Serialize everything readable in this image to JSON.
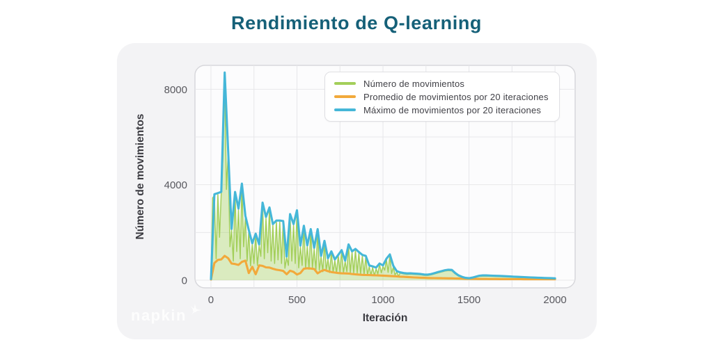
{
  "page": {
    "watermark": "napkin"
  },
  "colors": {
    "title": "#156078",
    "card_background": "#f3f3f5",
    "plot_background": "#fcfcfd",
    "plot_border": "#d7d7db",
    "gridline": "#e7e7ea",
    "tick_text": "#58585e",
    "axis_title_text": "#3b3b41",
    "series_green": "#a3cf5a",
    "series_green_fill": "rgba(163,207,90,0.38)",
    "series_orange": "#f2a93b",
    "series_blue": "#45b7d8"
  },
  "chart_data": {
    "type": "line",
    "title": "Rendimiento de Q-learning",
    "xlabel": "Iteración",
    "ylabel": "Número de movimientos",
    "xlim": [
      -93,
      2117
    ],
    "ylim": [
      -320,
      9000
    ],
    "x_ticks": [
      0,
      500,
      1000,
      1500,
      2000
    ],
    "y_ticks": [
      0,
      4000,
      8000
    ],
    "x_gridlines": [
      0,
      250,
      500,
      750,
      1000,
      1250,
      1500,
      1750,
      2000
    ],
    "y_gridlines": [
      0,
      2000,
      4000,
      6000,
      8000
    ],
    "grid": true,
    "legend_position": "top-right",
    "series": [
      {
        "name": "Número de movimientos",
        "type": "area",
        "color": "#a3cf5a",
        "fill": "rgba(163,207,90,0.38)",
        "points": [
          [
            0,
            20
          ],
          [
            10,
            3450
          ],
          [
            20,
            3550
          ],
          [
            30,
            900
          ],
          [
            40,
            3600
          ],
          [
            50,
            1800
          ],
          [
            60,
            3700
          ],
          [
            70,
            5200
          ],
          [
            80,
            8500
          ],
          [
            90,
            3800
          ],
          [
            100,
            5300
          ],
          [
            110,
            1400
          ],
          [
            120,
            2100
          ],
          [
            130,
            800
          ],
          [
            140,
            3650
          ],
          [
            150,
            1200
          ],
          [
            160,
            2950
          ],
          [
            170,
            900
          ],
          [
            180,
            4000
          ],
          [
            190,
            1400
          ],
          [
            200,
            2650
          ],
          [
            210,
            800
          ],
          [
            220,
            2050
          ],
          [
            230,
            600
          ],
          [
            240,
            1500
          ],
          [
            250,
            700
          ],
          [
            260,
            1900
          ],
          [
            270,
            620
          ],
          [
            280,
            1450
          ],
          [
            290,
            1000
          ],
          [
            300,
            3200
          ],
          [
            310,
            900
          ],
          [
            320,
            2600
          ],
          [
            330,
            1150
          ],
          [
            340,
            3000
          ],
          [
            350,
            800
          ],
          [
            360,
            2300
          ],
          [
            370,
            700
          ],
          [
            380,
            2450
          ],
          [
            390,
            850
          ],
          [
            400,
            2440
          ],
          [
            410,
            700
          ],
          [
            420,
            2430
          ],
          [
            430,
            500
          ],
          [
            440,
            950
          ],
          [
            450,
            620
          ],
          [
            460,
            2720
          ],
          [
            470,
            800
          ],
          [
            480,
            2300
          ],
          [
            490,
            700
          ],
          [
            500,
            2880
          ],
          [
            510,
            520
          ],
          [
            520,
            1400
          ],
          [
            530,
            620
          ],
          [
            540,
            2230
          ],
          [
            550,
            500
          ],
          [
            560,
            1420
          ],
          [
            570,
            460
          ],
          [
            580,
            2090
          ],
          [
            590,
            520
          ],
          [
            600,
            1310
          ],
          [
            610,
            420
          ],
          [
            620,
            2080
          ],
          [
            630,
            420
          ],
          [
            640,
            980
          ],
          [
            650,
            360
          ],
          [
            660,
            1600
          ],
          [
            670,
            420
          ],
          [
            680,
            880
          ],
          [
            690,
            320
          ],
          [
            700,
            1170
          ],
          [
            710,
            320
          ],
          [
            720,
            840
          ],
          [
            730,
            300
          ],
          [
            740,
            1030
          ],
          [
            750,
            320
          ],
          [
            760,
            1220
          ],
          [
            770,
            300
          ],
          [
            780,
            790
          ],
          [
            790,
            360
          ],
          [
            800,
            1460
          ],
          [
            810,
            320
          ],
          [
            820,
            1170
          ],
          [
            830,
            310
          ],
          [
            840,
            1270
          ],
          [
            850,
            300
          ],
          [
            860,
            1140
          ],
          [
            870,
            270
          ],
          [
            880,
            1020
          ],
          [
            890,
            250
          ],
          [
            900,
            980
          ],
          [
            910,
            230
          ],
          [
            920,
            580
          ],
          [
            930,
            210
          ],
          [
            940,
            540
          ],
          [
            950,
            190
          ],
          [
            960,
            490
          ],
          [
            970,
            260
          ],
          [
            980,
            660
          ],
          [
            990,
            310
          ],
          [
            1000,
            580
          ],
          [
            1010,
            420
          ],
          [
            1020,
            860
          ],
          [
            1030,
            330
          ],
          [
            1040,
            1040
          ],
          [
            1050,
            280
          ],
          [
            1060,
            560
          ],
          [
            1070,
            220
          ],
          [
            1080,
            350
          ],
          [
            1090,
            170
          ],
          [
            1100,
            300
          ],
          [
            1120,
            265
          ],
          [
            1140,
            245
          ],
          [
            1160,
            255
          ],
          [
            1180,
            245
          ],
          [
            1200,
            235
          ],
          [
            1220,
            225
          ],
          [
            1240,
            205
          ],
          [
            1260,
            200
          ],
          [
            1280,
            225
          ],
          [
            1300,
            265
          ],
          [
            1320,
            305
          ],
          [
            1340,
            345
          ],
          [
            1360,
            385
          ],
          [
            1380,
            405
          ],
          [
            1400,
            395
          ],
          [
            1420,
            265
          ],
          [
            1440,
            165
          ],
          [
            1460,
            125
          ],
          [
            1480,
            100
          ],
          [
            1500,
            92
          ],
          [
            1520,
            102
          ],
          [
            1540,
            132
          ],
          [
            1560,
            162
          ],
          [
            1580,
            168
          ],
          [
            1600,
            172
          ],
          [
            1650,
            158
          ],
          [
            1700,
            142
          ],
          [
            1750,
            122
          ],
          [
            1800,
            108
          ],
          [
            1850,
            96
          ],
          [
            1900,
            86
          ],
          [
            1950,
            76
          ],
          [
            2000,
            62
          ]
        ]
      },
      {
        "name": "Promedio de movimientos por 20 iteraciones",
        "type": "line",
        "color": "#f2a93b",
        "x_start": 0,
        "x_step": 20,
        "values": [
          30,
          720,
          850,
          870,
          1020,
          920,
          700,
          680,
          640,
          770,
          820,
          300,
          560,
          250,
          620,
          600,
          540,
          530,
          480,
          440,
          420,
          390,
          250,
          400,
          350,
          240,
          300,
          480,
          500,
          490,
          470,
          290,
          380,
          430,
          380,
          340,
          320,
          300,
          290,
          285,
          280,
          260,
          245,
          235,
          225,
          220,
          215,
          210,
          205,
          198,
          192,
          185,
          178,
          170,
          162,
          150,
          142,
          133,
          125,
          117,
          110,
          104,
          98,
          94,
          91,
          88,
          86,
          84,
          82,
          80,
          78,
          74,
          70,
          66,
          62,
          58,
          56,
          55,
          54,
          53,
          52,
          51,
          50,
          49,
          48,
          47,
          46,
          45,
          44,
          43,
          43,
          42,
          42,
          41,
          41,
          40,
          40,
          40,
          40,
          40,
          40
        ]
      },
      {
        "name": "Máximo de movimientos por 20 iteraciones",
        "type": "line",
        "color": "#45b7d8",
        "x_start": 0,
        "x_step": 20,
        "values": [
          50,
          3600,
          3650,
          3700,
          8700,
          5400,
          2150,
          3700,
          3000,
          4050,
          2700,
          2100,
          1550,
          1950,
          1500,
          3250,
          2650,
          3050,
          2350,
          2500,
          2500,
          2480,
          990,
          2770,
          2350,
          2930,
          1450,
          2280,
          1460,
          2140,
          1360,
          2140,
          1020,
          1650,
          920,
          1210,
          870,
          1060,
          1260,
          820,
          1500,
          1210,
          1310,
          1180,
          1060,
          1020,
          620,
          580,
          530,
          700,
          620,
          900,
          1080,
          600,
          380,
          330,
          300,
          285,
          290,
          280,
          270,
          260,
          240,
          235,
          260,
          300,
          340,
          380,
          420,
          440,
          430,
          300,
          200,
          140,
          100,
          85,
          110,
          150,
          190,
          200,
          200,
          195,
          190,
          185,
          180,
          172,
          165,
          158,
          150,
          143,
          136,
          130,
          124,
          118,
          112,
          106,
          100,
          95,
          90,
          85,
          80
        ]
      }
    ]
  }
}
